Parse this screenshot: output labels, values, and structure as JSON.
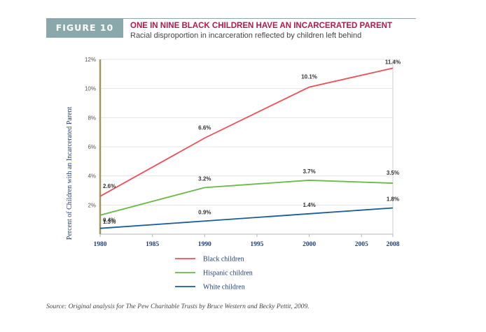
{
  "header": {
    "figure_label": "FIGURE 10",
    "title": "ONE IN NINE BLACK CHILDREN HAVE AN INCARCERATED PARENT",
    "subtitle": "Racial disproportion in incarceration reflected by children left behind"
  },
  "source": "Source: Original analysis for The Pew Charitable Trusts by Bruce Western and Becky Pettit, 2009.",
  "colors": {
    "header_tag": "#8aa8a9",
    "title": "#b31b4a",
    "axis": "#a39360",
    "grid": "#e4e4e4"
  },
  "chart_data": {
    "type": "line",
    "title": "ONE IN NINE BLACK CHILDREN HAVE AN INCARCERATED PARENT",
    "subtitle": "Racial disproportion in incarceration reflected by children left behind",
    "xlabel": "",
    "ylabel": "Percent of Children with an Incarcerated Parent",
    "x": [
      1980,
      1990,
      2000,
      2008
    ],
    "xticks": [
      1980,
      1985,
      1990,
      1995,
      2000,
      2005,
      2008
    ],
    "yticks": [
      2,
      4,
      6,
      8,
      10,
      12
    ],
    "ytick_labels": [
      "2%",
      "4%",
      "6%",
      "8%",
      "10%",
      "12%"
    ],
    "xlim": [
      1980,
      2008
    ],
    "ylim": [
      0,
      12
    ],
    "grid": "horizontal",
    "legend_position": "bottom",
    "series": [
      {
        "name": "Black children",
        "values": [
          2.6,
          6.6,
          10.1,
          11.4
        ],
        "labels": [
          "2.6%",
          "6.6%",
          "10.1%",
          "11.4%"
        ],
        "color": "#ee4e55"
      },
      {
        "name": "Hispanic children",
        "values": [
          1.3,
          3.2,
          3.7,
          3.5
        ],
        "labels": [
          "1.3%",
          "3.2%",
          "3.7%",
          "3.5%"
        ],
        "color": "#6ab845"
      },
      {
        "name": "White children",
        "values": [
          0.4,
          0.9,
          1.4,
          1.8
        ],
        "labels": [
          "0.4%",
          "0.9%",
          "1.4%",
          "1.8%"
        ],
        "color": "#1a5d96"
      }
    ]
  }
}
